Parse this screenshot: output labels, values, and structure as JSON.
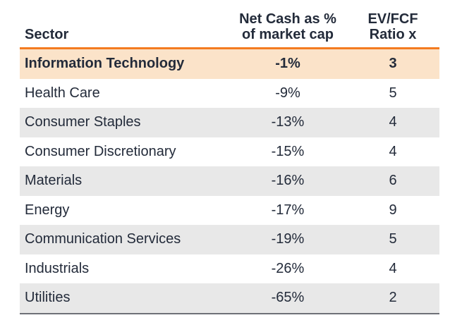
{
  "chart_data": {
    "type": "table",
    "columns": [
      {
        "id": "sector",
        "label": "Sector",
        "align": "left"
      },
      {
        "id": "net_cash_pct_of_market_cap",
        "label_line1": "Net Cash as %",
        "label_line2": "of market cap",
        "align": "center"
      },
      {
        "id": "ev_fcf_ratio",
        "label_line1": "EV/FCF",
        "label_line2": "Ratio x",
        "align": "center"
      }
    ],
    "rows": [
      {
        "sector": "Information Technology",
        "net_cash": "-1%",
        "ev_fcf": 3,
        "highlight": true
      },
      {
        "sector": "Health Care",
        "net_cash": "-9%",
        "ev_fcf": 5
      },
      {
        "sector": "Consumer Staples",
        "net_cash": "-13%",
        "ev_fcf": 4
      },
      {
        "sector": "Consumer Discretionary",
        "net_cash": "-15%",
        "ev_fcf": 4
      },
      {
        "sector": "Materials",
        "net_cash": "-16%",
        "ev_fcf": 6
      },
      {
        "sector": "Energy",
        "net_cash": "-17%",
        "ev_fcf": 9
      },
      {
        "sector": "Communication Services",
        "net_cash": "-19%",
        "ev_fcf": 5
      },
      {
        "sector": "Industrials",
        "net_cash": "-26%",
        "ev_fcf": 4
      },
      {
        "sector": "Utilities",
        "net_cash": "-65%",
        "ev_fcf": 2
      }
    ],
    "highlighted_row": "Information Technology",
    "layout": {
      "zebra_striping": true,
      "header_rule": "orange",
      "bottom_rule": "dark-gray"
    }
  },
  "colors": {
    "accent_orange": "#F47B20",
    "highlight_row_bg": "#FBE3C9",
    "zebra_row_bg": "#E8E8E8",
    "text": "#232B3A",
    "bottom_border": "#6E7077",
    "background": "#FFFFFF"
  }
}
